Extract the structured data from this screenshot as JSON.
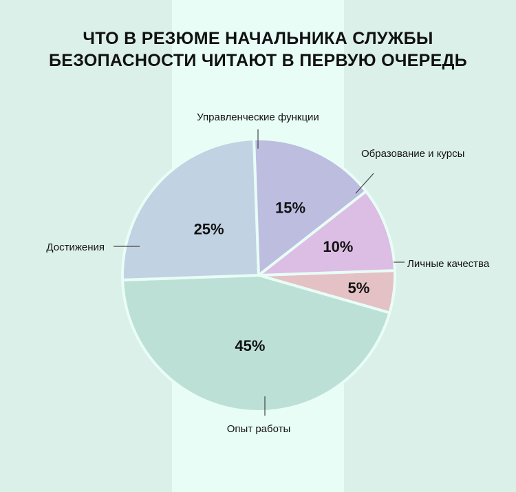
{
  "colors": {
    "bg_side": "#dcf0ea",
    "bg_mid": "#e8fdf6",
    "slice_border": "#e8fdf6"
  },
  "title_lines": [
    "ЧТО В РЕЗЮМЕ НАЧАЛЬНИКА СЛУЖБЫ",
    "БЕЗОПАСНОСТИ ЧИТАЮТ В ПЕРВУЮ ОЧЕРЕДЬ"
  ],
  "chart_data": {
    "type": "pie",
    "title": "ЧТО В РЕЗЮМЕ НАЧАЛЬНИКА СЛУЖБЫ БЕЗОПАСНОСТИ ЧИТАЮТ В ПЕРВУЮ ОЧЕРЕДЬ",
    "slices": [
      {
        "label": "Личные качества",
        "value": 5,
        "value_label": "5%",
        "color": "#e4c1c5"
      },
      {
        "label": "Опыт работы",
        "value": 45,
        "value_label": "45%",
        "color": "#bce0d5"
      },
      {
        "label": "Достижения",
        "value": 25,
        "value_label": "25%",
        "color": "#c1d2e2"
      },
      {
        "label": "Управленческие функции",
        "value": 15,
        "value_label": "15%",
        "color": "#bdbde0"
      },
      {
        "label": "Образование и курсы",
        "value": 10,
        "value_label": "10%",
        "color": "#dcbde4"
      }
    ]
  }
}
